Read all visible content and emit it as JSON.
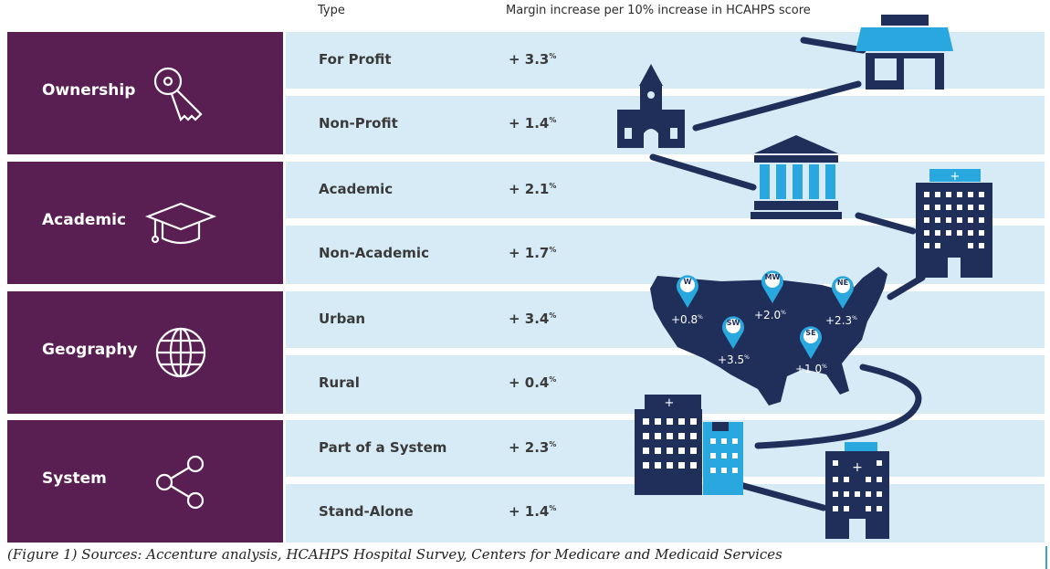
{
  "header": {
    "type_label": "Type",
    "margin_label": "Margin increase per 10% increase in HCAHPS score"
  },
  "groups": [
    {
      "name": "Ownership",
      "icon": "key-icon",
      "rows": [
        {
          "type": "For Profit",
          "value": "+ 3.3",
          "unit": "%"
        },
        {
          "type": "Non-Profit",
          "value": "+ 1.4",
          "unit": "%"
        }
      ]
    },
    {
      "name": "Academic",
      "icon": "graduation-cap-icon",
      "rows": [
        {
          "type": "Academic",
          "value": "+ 2.1",
          "unit": "%"
        },
        {
          "type": "Non-Academic",
          "value": "+ 1.7",
          "unit": "%"
        }
      ]
    },
    {
      "name": "Geography",
      "icon": "globe-icon",
      "rows": [
        {
          "type": "Urban",
          "value": "+ 3.4",
          "unit": "%"
        },
        {
          "type": "Rural",
          "value": "+ 0.4",
          "unit": "%"
        }
      ]
    },
    {
      "name": "System",
      "icon": "share-icon",
      "rows": [
        {
          "type": "Part of a System",
          "value": "+ 2.3",
          "unit": "%"
        },
        {
          "type": "Stand-Alone",
          "value": "+ 1.4",
          "unit": "%"
        }
      ]
    }
  ],
  "map": {
    "regions": [
      {
        "code": "W",
        "value": "+0.8",
        "unit": "%"
      },
      {
        "code": "MW",
        "value": "+2.0",
        "unit": "%"
      },
      {
        "code": "NE",
        "value": "+2.3",
        "unit": "%"
      },
      {
        "code": "SW",
        "value": "+3.5",
        "unit": "%"
      },
      {
        "code": "SE",
        "value": "+1.0",
        "unit": "%"
      }
    ]
  },
  "source": "(Figure 1) Sources: Accenture analysis, HCAHPS Hospital Survey, Centers for Medicare and Medicaid Services",
  "colors": {
    "category": "#5a1f52",
    "row": "#d6ebf6",
    "navy": "#1f2f5a",
    "sky": "#29a8e0"
  }
}
